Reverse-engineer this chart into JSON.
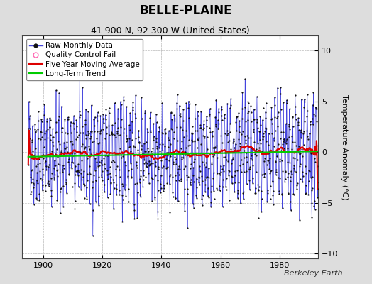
{
  "title": "BELLE-PLAINE",
  "subtitle": "41.900 N, 92.300 W (United States)",
  "ylabel": "Temperature Anomaly (°C)",
  "watermark": "Berkeley Earth",
  "xlim": [
    1893,
    1993
  ],
  "ylim": [
    -10.5,
    11.5
  ],
  "yticks": [
    -10,
    -5,
    0,
    5,
    10
  ],
  "xticks": [
    1900,
    1920,
    1940,
    1960,
    1980
  ],
  "start_year": 1895,
  "end_year": 1992,
  "seed": 42,
  "background_color": "#dddddd",
  "plot_bg_color": "#ffffff",
  "raw_line_color": "#4444dd",
  "raw_dot_color": "#111111",
  "moving_avg_color": "#dd0000",
  "trend_color": "#00cc00",
  "qc_fail_color": "#ff69b4",
  "grid_color": "#bbbbbb",
  "title_fontsize": 12,
  "subtitle_fontsize": 9,
  "ylabel_fontsize": 8,
  "tick_fontsize": 8,
  "legend_fontsize": 7.5,
  "watermark_fontsize": 8
}
